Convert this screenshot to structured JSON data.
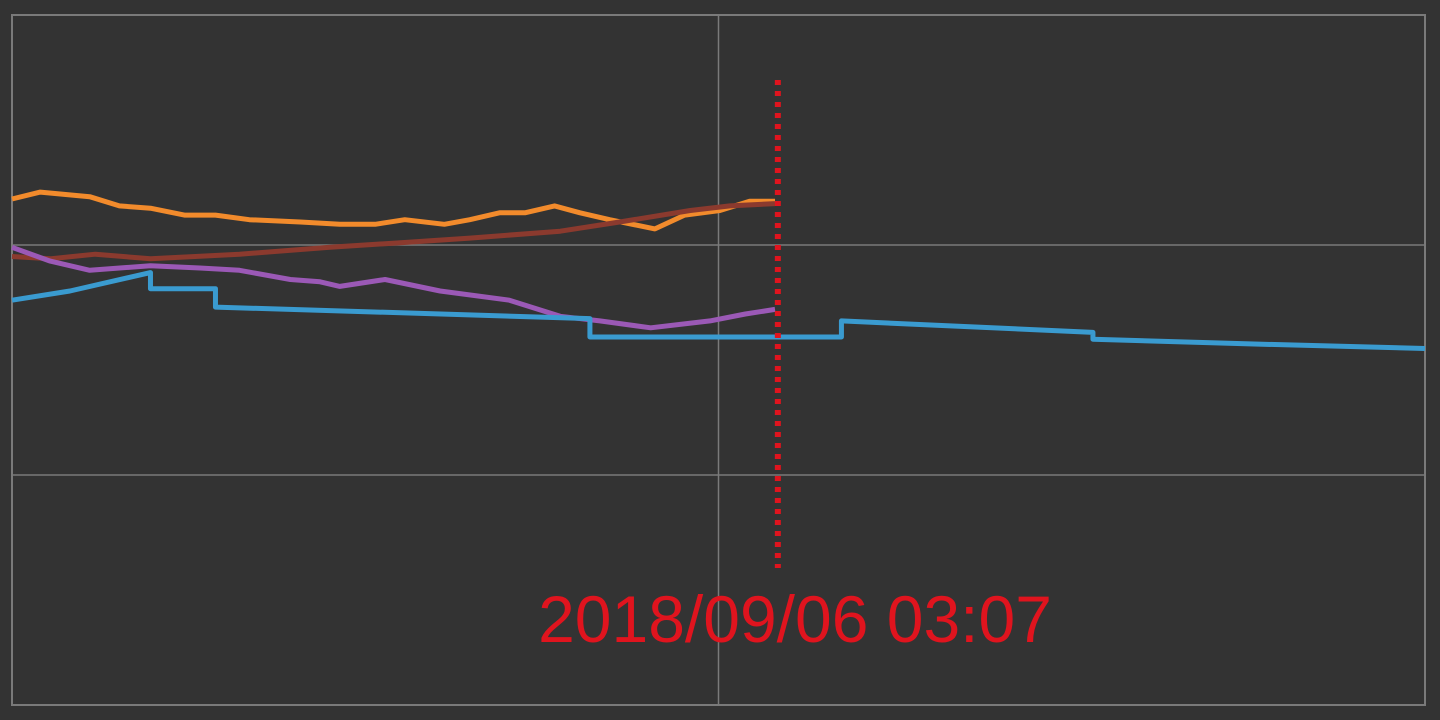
{
  "chart_data": {
    "type": "line",
    "xlim": [
      0,
      100
    ],
    "xticks": [
      50
    ],
    "ylim": [
      0,
      3
    ],
    "yticks": [
      1,
      2
    ],
    "grid": true,
    "series": [
      {
        "color": "#f28b2c",
        "x": [
          0,
          2.0,
          5.5,
          7.6,
          9.8,
          12.2,
          14.4,
          16.8,
          20.4,
          23.2,
          25.7,
          27.8,
          30.6,
          32.4,
          34.5,
          36.3,
          38.4,
          40.2,
          42.3,
          45.5,
          47.6,
          50.1,
          52.2,
          54.0
        ],
        "values": [
          2.2,
          2.23,
          2.21,
          2.17,
          2.16,
          2.13,
          2.13,
          2.11,
          2.1,
          2.09,
          2.09,
          2.11,
          2.09,
          2.11,
          2.14,
          2.14,
          2.17,
          2.14,
          2.11,
          2.07,
          2.13,
          2.15,
          2.19,
          2.19
        ]
      },
      {
        "color": "#8b3a2e",
        "x": [
          0,
          2.7,
          5.9,
          9.8,
          16.1,
          22.5,
          27.5,
          32.4,
          38.8,
          43.0,
          48.0,
          50.8,
          54.0
        ],
        "values": [
          1.95,
          1.94,
          1.96,
          1.94,
          1.96,
          1.99,
          2.01,
          2.03,
          2.06,
          2.1,
          2.15,
          2.17,
          2.18
        ]
      },
      {
        "color": "#9b59b6",
        "x": [
          0,
          2.7,
          5.5,
          9.8,
          13.3,
          16.1,
          19.7,
          21.8,
          23.2,
          26.4,
          30.3,
          35.2,
          38.8,
          41.6,
          45.2,
          49.4,
          51.9,
          54.0
        ],
        "values": [
          1.99,
          1.93,
          1.89,
          1.91,
          1.9,
          1.89,
          1.85,
          1.84,
          1.82,
          1.85,
          1.8,
          1.76,
          1.69,
          1.67,
          1.64,
          1.67,
          1.7,
          1.72
        ]
      },
      {
        "color": "#3a9bd0",
        "x": [
          0,
          4.1,
          9.8,
          9.8,
          14.4,
          14.4,
          40.9,
          40.9,
          58.7,
          58.7,
          76.5,
          76.5,
          87.6,
          100
        ],
        "values": [
          1.76,
          1.8,
          1.88,
          1.81,
          1.81,
          1.73,
          1.68,
          1.6,
          1.6,
          1.67,
          1.62,
          1.59,
          1.57,
          1.55
        ]
      }
    ],
    "marker": {
      "x": 54.2,
      "color": "#e0141e",
      "label": "2018/09/06 03:07"
    }
  }
}
